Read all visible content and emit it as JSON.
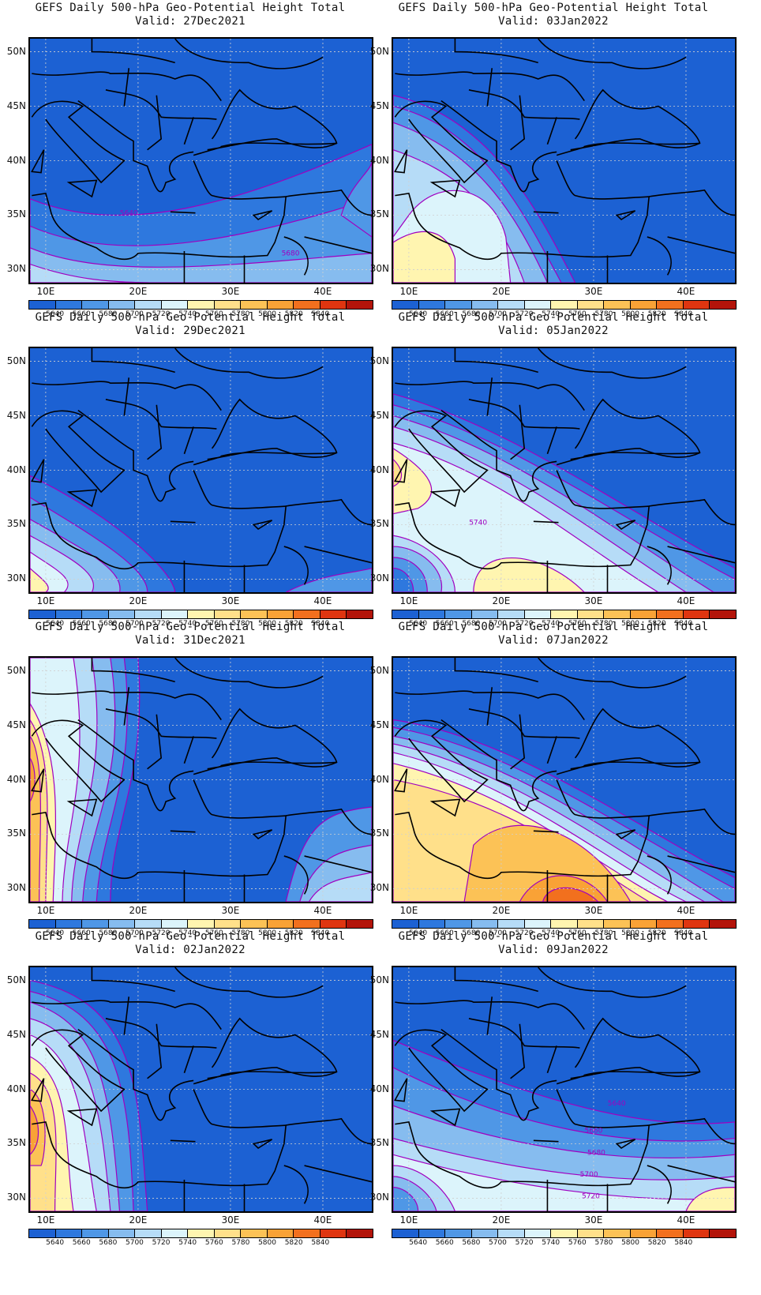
{
  "title_line": "GEFS Daily 500-hPa Geo-Potential Height Total",
  "valid_prefix": "Valid:",
  "latitudes": [
    "50N",
    "45N",
    "40N",
    "35N",
    "30N"
  ],
  "longitudes": [
    "10E",
    "20E",
    "30E",
    "40E"
  ],
  "colorbar": {
    "colors": [
      "#1c61d3",
      "#2e78de",
      "#4f97e6",
      "#86bcef",
      "#b6dcf7",
      "#dcf4fb",
      "#fff5b0",
      "#ffe08a",
      "#fcc256",
      "#f9a236",
      "#f2701e",
      "#df3510",
      "#b3140a"
    ],
    "labels": [
      "5640",
      "5660",
      "5680",
      "5700",
      "5720",
      "5740",
      "5760",
      "5780",
      "5800",
      "5820",
      "5840"
    ]
  },
  "panels": [
    {
      "valid": "27Dec2021",
      "contour_labels": [
        "5640",
        "5680"
      ]
    },
    {
      "valid": "03Jan2022",
      "contour_labels": []
    },
    {
      "valid": "29Dec2021",
      "contour_labels": []
    },
    {
      "valid": "05Jan2022",
      "contour_labels": [
        "5740"
      ]
    },
    {
      "valid": "31Dec2021",
      "contour_labels": []
    },
    {
      "valid": "07Jan2022",
      "contour_labels": []
    },
    {
      "valid": "02Jan2022",
      "contour_labels": []
    },
    {
      "valid": "09Jan2022",
      "contour_labels": [
        "5640",
        "5660",
        "5680",
        "5700",
        "5720"
      ]
    }
  ]
}
